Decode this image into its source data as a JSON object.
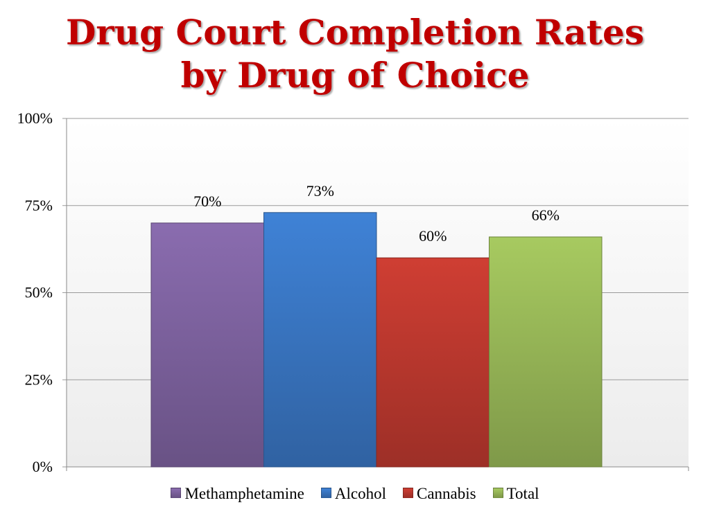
{
  "title": {
    "line1": "Drug Court Completion Rates",
    "line2": "by Drug of Choice"
  },
  "chart_data": {
    "type": "bar",
    "title": "Drug Court Completion Rates by Drug of Choice",
    "xlabel": "",
    "ylabel": "",
    "ylim": [
      0,
      100
    ],
    "yticks": [
      0,
      25,
      50,
      75,
      100
    ],
    "ytick_labels": [
      "0%",
      "25%",
      "50%",
      "75%",
      "100%"
    ],
    "grid": true,
    "legend": "bottom",
    "series": [
      {
        "name": "Methamphetamine",
        "value": 70,
        "label": "70%",
        "color": "#8064a2"
      },
      {
        "name": "Alcohol",
        "value": 73,
        "label": "73%",
        "color": "#3a78c6"
      },
      {
        "name": "Cannabis",
        "value": 60,
        "label": "60%",
        "color": "#c0392f"
      },
      {
        "name": "Total",
        "value": 66,
        "label": "66%",
        "color": "#9bbb59"
      }
    ]
  }
}
